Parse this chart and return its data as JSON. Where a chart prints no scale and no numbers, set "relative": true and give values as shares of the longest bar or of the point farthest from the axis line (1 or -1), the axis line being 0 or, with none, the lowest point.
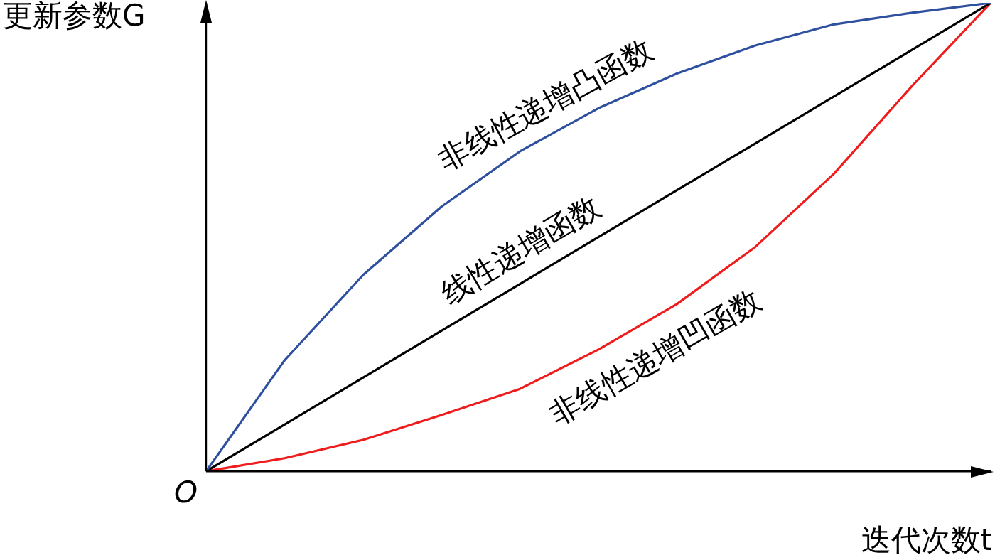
{
  "chart_data": {
    "type": "line",
    "relative": true,
    "categories": [
      null,
      null,
      null,
      null,
      null,
      null,
      null,
      null,
      null,
      null,
      null
    ],
    "xlabel": "迭代次数t",
    "ylabel": "更新参数G",
    "annotations": [
      "O"
    ],
    "series": [
      {
        "name": "非线性递增凸函数",
        "color": "#2f4f9f",
        "values": [
          0,
          0.237,
          0.419,
          0.565,
          0.683,
          0.775,
          0.849,
          0.909,
          0.954,
          0.979,
          1
        ]
      },
      {
        "name": "线性递增函数",
        "color": "#000000",
        "values": [
          0,
          0.1,
          0.2,
          0.3,
          0.4,
          0.5,
          0.6,
          0.7,
          0.8,
          0.9,
          1
        ]
      },
      {
        "name": "非线性递增凹函数",
        "color": "#ee1c1c",
        "values": [
          0,
          0.028,
          0.067,
          0.12,
          0.176,
          0.26,
          0.357,
          0.479,
          0.635,
          0.823,
          1
        ]
      }
    ],
    "legend": false,
    "grid": false,
    "marker": "none",
    "line_style": "solid"
  }
}
